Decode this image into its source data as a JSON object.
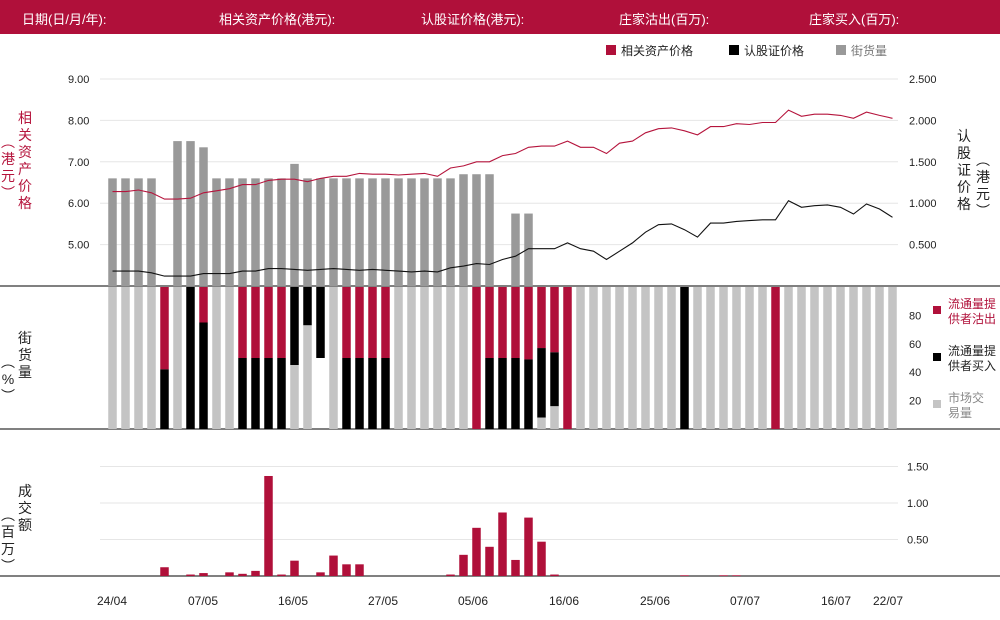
{
  "header": {
    "date_label": "日期(日/月/年):",
    "asset_price_label": "相关资产价格(港元):",
    "warrant_price_label": "认股证价格(港元):",
    "dealer_sell_label": "庄家沽出(百万):",
    "dealer_buy_label": "庄家买入(百万):"
  },
  "colors": {
    "header_bg": "#b0103a",
    "asset_line": "#b5143c",
    "warrant_line": "#111111",
    "outstanding_bar": "#999999",
    "liquidity_sell": "#b0103a",
    "liquidity_buy": "#000000",
    "market_volume": "#c4c4c4"
  },
  "chart_data": [
    {
      "type": "line",
      "panel": "price",
      "legend": {
        "asset": "相关资产价格",
        "warrant": "认股证价格",
        "outstanding": "街货量"
      },
      "y_left_label": "相关资产价格(港元)",
      "y_left_ticks": [
        "5.00",
        "6.00",
        "7.00",
        "8.00",
        "9.00"
      ],
      "y_left_range": [
        4.0,
        9.0
      ],
      "y_right_label": "认股证价格(港元)",
      "y_right_ticks": [
        "0.500",
        "1.000",
        "1.500",
        "2.000",
        "2.500"
      ],
      "y_right_range": [
        0.0,
        2.5
      ],
      "x_ticks": [
        "24/04",
        "07/05",
        "16/05",
        "27/05",
        "05/06",
        "16/06",
        "25/06",
        "07/07",
        "16/07",
        "22/07"
      ],
      "series": [
        {
          "name": "相关资产价格",
          "values": [
            6.28,
            6.28,
            6.32,
            6.25,
            6.1,
            6.1,
            6.12,
            6.25,
            6.3,
            6.35,
            6.45,
            6.45,
            6.55,
            6.58,
            6.58,
            6.52,
            6.6,
            6.65,
            6.65,
            6.72,
            6.7,
            6.7,
            6.68,
            6.7,
            6.72,
            6.65,
            6.85,
            6.9,
            7.0,
            7.0,
            7.15,
            7.2,
            7.35,
            7.38,
            7.38,
            7.5,
            7.35,
            7.35,
            7.2,
            7.45,
            7.5,
            7.7,
            7.8,
            7.82,
            7.75,
            7.65,
            7.85,
            7.85,
            7.92,
            7.9,
            7.95,
            7.95,
            8.25,
            8.1,
            8.15,
            8.15,
            8.12,
            8.05,
            8.2,
            8.12,
            8.05
          ]
        },
        {
          "name": "认股证价格",
          "values": [
            0.18,
            0.18,
            0.18,
            0.16,
            0.12,
            0.12,
            0.12,
            0.15,
            0.15,
            0.15,
            0.18,
            0.18,
            0.21,
            0.21,
            0.2,
            0.19,
            0.2,
            0.21,
            0.2,
            0.19,
            0.2,
            0.19,
            0.18,
            0.17,
            0.18,
            0.17,
            0.22,
            0.24,
            0.27,
            0.26,
            0.32,
            0.36,
            0.45,
            0.45,
            0.45,
            0.52,
            0.45,
            0.42,
            0.32,
            0.42,
            0.52,
            0.65,
            0.74,
            0.75,
            0.68,
            0.59,
            0.76,
            0.76,
            0.78,
            0.79,
            0.8,
            0.8,
            1.03,
            0.95,
            0.97,
            0.98,
            0.95,
            0.87,
            0.99,
            0.93,
            0.83
          ]
        },
        {
          "name": "街货量",
          "role": "bars",
          "values": [
            52,
            52,
            52,
            52,
            null,
            70,
            70,
            67,
            52,
            52,
            52,
            52,
            52,
            52,
            59,
            52,
            52,
            52,
            52,
            52,
            52,
            52,
            52,
            52,
            52,
            52,
            52,
            54,
            54,
            54,
            null,
            35,
            35,
            null,
            null,
            null,
            null,
            null,
            null,
            null,
            null,
            null,
            null,
            null,
            null,
            null,
            null,
            null,
            null,
            null,
            null,
            null,
            null,
            null,
            null,
            null,
            null,
            null,
            null,
            null,
            null
          ]
        }
      ]
    },
    {
      "type": "bar",
      "panel": "liquidity",
      "y_label": "街货量(%)",
      "y_ticks": [
        "20",
        "40",
        "60",
        "80"
      ],
      "y_range": [
        0,
        100
      ],
      "legend": {
        "sell": "流通量提供者沽出",
        "buy": "流通量提供者买入",
        "market": "市场交易量"
      },
      "series": [
        {
          "name": "流通量提供者沽出",
          "values": [
            0,
            0,
            0,
            0,
            58,
            0,
            0,
            25,
            0,
            0,
            50,
            50,
            50,
            50,
            0,
            0,
            0,
            0,
            50,
            50,
            50,
            50,
            0,
            0,
            0,
            0,
            0,
            0,
            100,
            50,
            50,
            50,
            51,
            43,
            46,
            100,
            0,
            0,
            0,
            0,
            0,
            0,
            0,
            0,
            0,
            0,
            0,
            0,
            0,
            0,
            0,
            100,
            0,
            0,
            0,
            0,
            0,
            0,
            0,
            0,
            0
          ]
        },
        {
          "name": "流通量提供者买入",
          "values": [
            0,
            0,
            0,
            0,
            42,
            0,
            100,
            75,
            0,
            0,
            50,
            50,
            50,
            50,
            55,
            27,
            50,
            0,
            50,
            50,
            50,
            50,
            0,
            0,
            0,
            0,
            0,
            0,
            0,
            50,
            50,
            50,
            49,
            49,
            38,
            0,
            0,
            0,
            0,
            0,
            0,
            0,
            0,
            0,
            100,
            0,
            0,
            0,
            0,
            0,
            0,
            0,
            0,
            0,
            0,
            0,
            0,
            0,
            0,
            0,
            0
          ]
        },
        {
          "name": "市场交易量",
          "values": [
            100,
            100,
            100,
            100,
            0,
            100,
            0,
            0,
            100,
            100,
            0,
            0,
            0,
            0,
            45,
            73,
            0,
            100,
            0,
            0,
            0,
            0,
            100,
            100,
            100,
            100,
            100,
            100,
            0,
            0,
            0,
            0,
            0,
            8,
            16,
            0,
            100,
            100,
            100,
            100,
            100,
            100,
            100,
            100,
            0,
            100,
            100,
            100,
            100,
            100,
            100,
            0,
            100,
            100,
            100,
            100,
            100,
            100,
            100,
            100,
            100
          ]
        }
      ]
    },
    {
      "type": "bar",
      "panel": "turnover",
      "y_label": "成交额(百万)",
      "y_ticks": [
        "0.50",
        "1.00",
        "1.50"
      ],
      "y_range": [
        0,
        2.0
      ],
      "series": [
        {
          "name": "成交额",
          "values": [
            0,
            0,
            0,
            0,
            0.12,
            0,
            0.02,
            0.04,
            0,
            0.05,
            0.03,
            0.07,
            1.37,
            0.02,
            0.21,
            0,
            0.05,
            0.28,
            0.16,
            0.16,
            0,
            0,
            0,
            0,
            0,
            0,
            0.02,
            0.29,
            0.66,
            0.4,
            0.87,
            0.22,
            0.8,
            0.47,
            0.02,
            0,
            0,
            0,
            0,
            0,
            0,
            0,
            0,
            0,
            0.01,
            0,
            0,
            0.01,
            0.01,
            0,
            0,
            0,
            0,
            0,
            0,
            0,
            0,
            0,
            0,
            0,
            0
          ]
        }
      ]
    }
  ]
}
